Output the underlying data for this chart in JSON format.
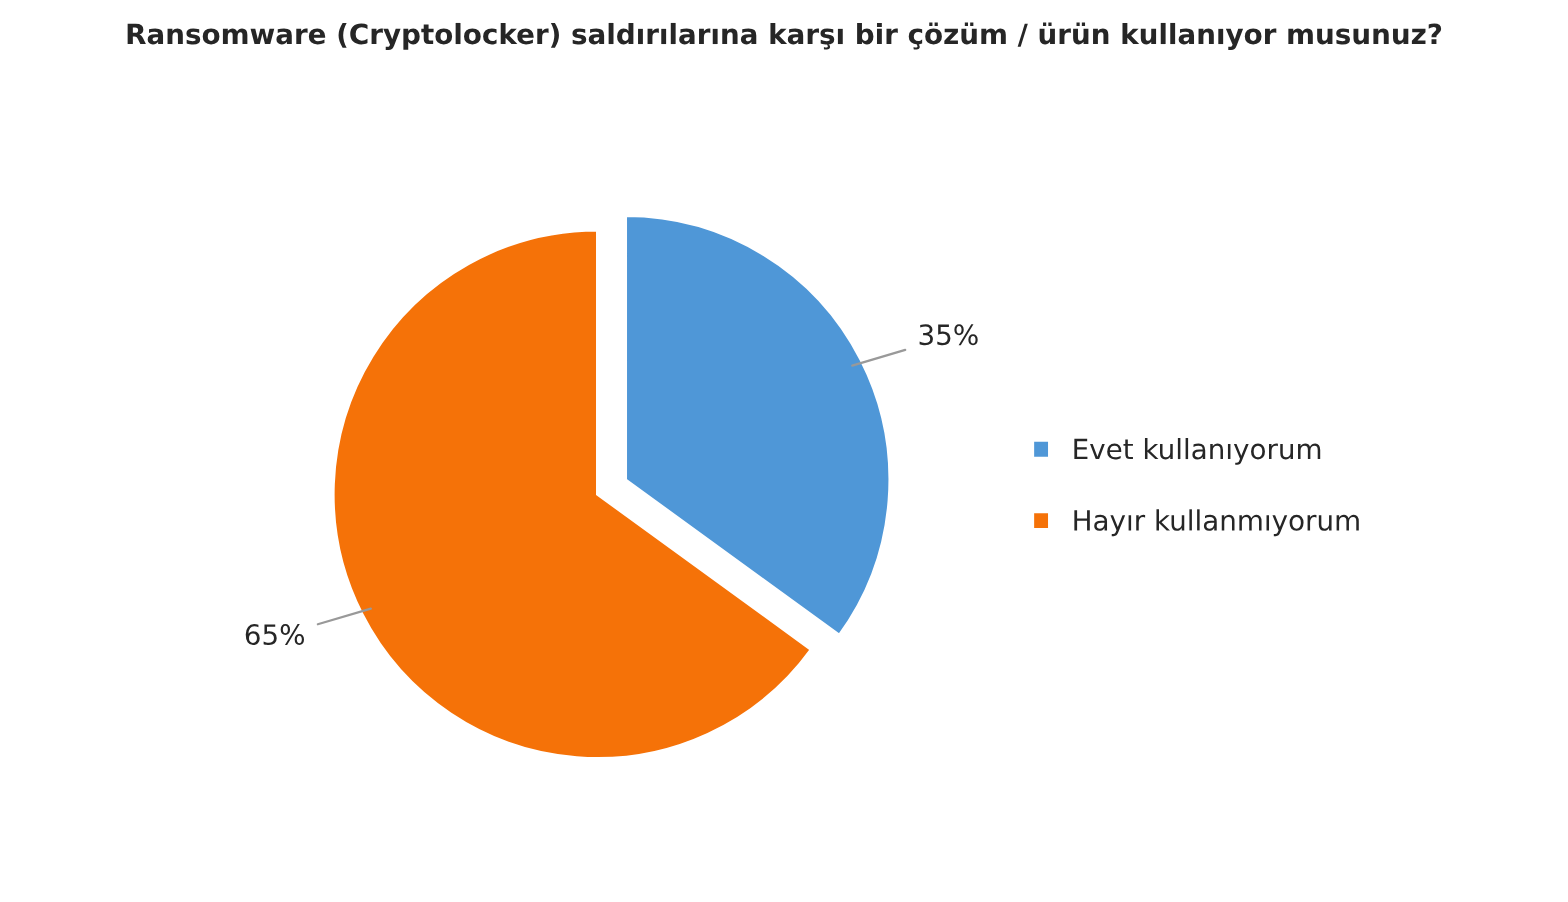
{
  "chart_data": {
    "type": "pie",
    "title": "Ransomware (Cryptolocker) saldırılarına karşı bir çözüm / ürün kullanıyor musunuz?",
    "categories": [
      "Evet kullanıyorum",
      "Hayır kullanmıyorum"
    ],
    "values": [
      35,
      65
    ],
    "colors": [
      "#4f97d7",
      "#f57208"
    ],
    "value_labels": [
      "35%",
      "65%"
    ],
    "legend": "right"
  }
}
